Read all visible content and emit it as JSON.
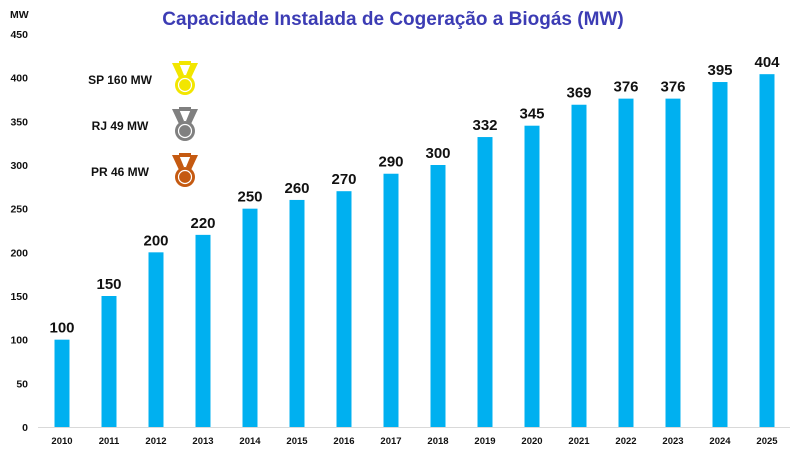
{
  "chart_data": {
    "type": "bar",
    "title": "Capacidade Instalada de Cogeração a Biogás (MW)",
    "ylabel": "MW",
    "xlabel": "",
    "ylim": [
      0,
      450
    ],
    "yticks": [
      0,
      50,
      100,
      150,
      200,
      250,
      300,
      350,
      400,
      450
    ],
    "categories": [
      "2010",
      "2011",
      "2012",
      "2013",
      "2014",
      "2015",
      "2016",
      "2017",
      "2018",
      "2019",
      "2020",
      "2021",
      "2022",
      "2023",
      "2024",
      "2025"
    ],
    "values": [
      100,
      150,
      200,
      220,
      250,
      260,
      270,
      290,
      300,
      332,
      345,
      369,
      376,
      376,
      395,
      404
    ],
    "bar_color": "#00b0f0",
    "grid": false,
    "annotations": [
      {
        "label": "SP 160 MW",
        "icon": "gold-medal-icon",
        "color": "#f2e600"
      },
      {
        "label": "RJ 49 MW",
        "icon": "silver-medal-icon",
        "color": "#808080"
      },
      {
        "label": "PR 46 MW",
        "icon": "bronze-medal-icon",
        "color": "#c55a11"
      }
    ]
  }
}
